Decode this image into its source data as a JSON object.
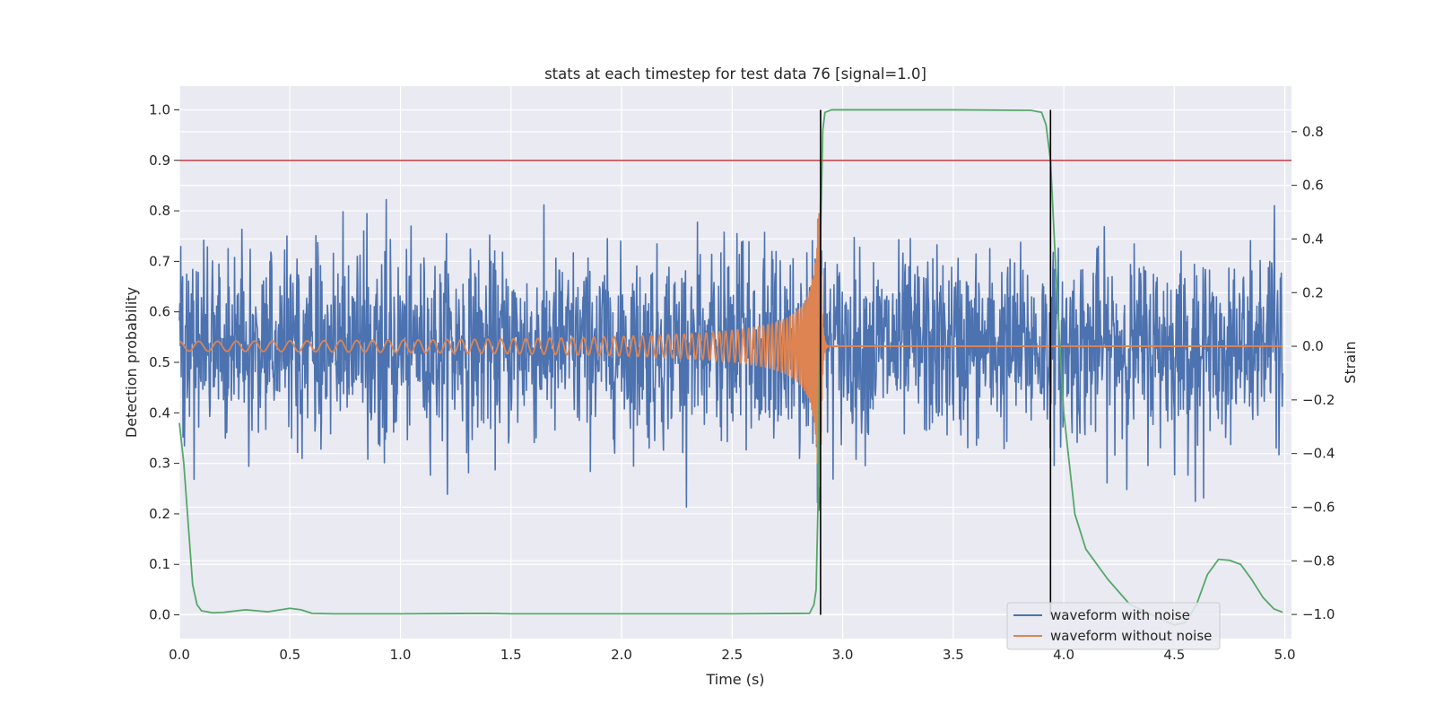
{
  "chart_data": {
    "type": "line",
    "title": "stats at each timestep for test data 76 [signal=1.0]",
    "xlabel": "Time (s)",
    "ylabel_left": "Detection probability",
    "ylabel_right": "Strain",
    "xlim": [
      0.0,
      5.03
    ],
    "ylim_left": [
      -0.047,
      1.047
    ],
    "ylim_right": [
      -1.09,
      0.97
    ],
    "x_ticks": [
      "0.0",
      "0.5",
      "1.0",
      "1.5",
      "2.0",
      "2.5",
      "3.0",
      "3.5",
      "4.0",
      "4.5",
      "5.0"
    ],
    "x_tick_values": [
      0.0,
      0.5,
      1.0,
      1.5,
      2.0,
      2.5,
      3.0,
      3.5,
      4.0,
      4.5,
      5.0
    ],
    "y_left_ticks": [
      "0.0",
      "0.1",
      "0.2",
      "0.3",
      "0.4",
      "0.5",
      "0.6",
      "0.7",
      "0.8",
      "0.9",
      "1.0"
    ],
    "y_left_tick_values": [
      0.0,
      0.1,
      0.2,
      0.3,
      0.4,
      0.5,
      0.6,
      0.7,
      0.8,
      0.9,
      1.0
    ],
    "y_right_ticks": [
      "−1.0",
      "−0.8",
      "−0.6",
      "−0.4",
      "−0.2",
      "0.0",
      "0.2",
      "0.4",
      "0.6",
      "0.8"
    ],
    "y_right_tick_values": [
      -1.0,
      -0.8,
      -0.6,
      -0.4,
      -0.2,
      0.0,
      0.2,
      0.4,
      0.6,
      0.8
    ],
    "grid": true,
    "legend_placement": "lower-right",
    "threshold": {
      "value": 0.9,
      "color": "#c44e52"
    },
    "event_markers": {
      "x": [
        2.9,
        3.94
      ],
      "color": "#000000"
    },
    "series": [
      {
        "name": "waveform with noise",
        "axis": "right",
        "color": "#4c72b0",
        "kind": "noise",
        "noise_sigma": 0.17,
        "noise_max": 0.55,
        "noise_min": -0.62,
        "x_range": [
          0.0,
          4.99
        ]
      },
      {
        "name": "waveform without noise",
        "axis": "right",
        "color": "#dd8452",
        "kind": "chirp",
        "merger_time": 2.9,
        "peak_amplitude": 0.55,
        "x_range": [
          0.0,
          4.99
        ]
      },
      {
        "axis": "left",
        "color": "#55a868",
        "kind": "probability",
        "x": [
          0.0,
          0.02,
          0.04,
          0.06,
          0.08,
          0.1,
          0.15,
          0.2,
          0.3,
          0.4,
          0.5,
          0.55,
          0.6,
          0.7,
          1.0,
          1.4,
          1.5,
          2.0,
          2.5,
          2.85,
          2.87,
          2.88,
          2.89,
          2.9,
          2.91,
          2.92,
          2.95,
          3.5,
          3.85,
          3.9,
          3.92,
          3.94,
          3.96,
          3.98,
          4.0,
          4.05,
          4.1,
          4.2,
          4.3,
          4.4,
          4.5,
          4.55,
          4.6,
          4.65,
          4.7,
          4.75,
          4.8,
          4.85,
          4.9,
          4.95,
          4.99
        ],
        "y": [
          0.38,
          0.3,
          0.18,
          0.06,
          0.02,
          0.008,
          0.004,
          0.005,
          0.01,
          0.006,
          0.013,
          0.01,
          0.003,
          0.002,
          0.002,
          0.003,
          0.002,
          0.002,
          0.002,
          0.003,
          0.02,
          0.05,
          0.25,
          0.75,
          0.96,
          0.995,
          1.0,
          1.0,
          0.999,
          0.995,
          0.97,
          0.9,
          0.72,
          0.55,
          0.4,
          0.2,
          0.13,
          0.07,
          0.02,
          0.0,
          -0.02,
          -0.015,
          0.02,
          0.08,
          0.11,
          0.108,
          0.1,
          0.07,
          0.035,
          0.012,
          0.005
        ]
      }
    ]
  }
}
